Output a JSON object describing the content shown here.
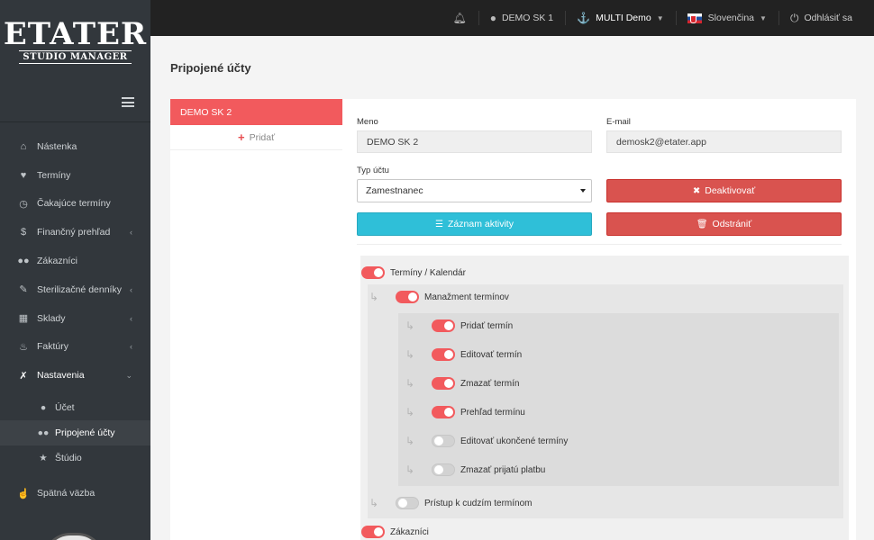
{
  "brand": {
    "name": "ETATER",
    "tagline": "STUDIO MANAGER"
  },
  "topbar": {
    "user": "DEMO SK 1",
    "workspace": "MULTI Demo",
    "language": "Slovenčina",
    "logout": "Odhlásiť sa"
  },
  "sidebar": {
    "items": [
      {
        "label": "Nástenka",
        "icon": "dashboard-icon"
      },
      {
        "label": "Termíny",
        "icon": "heart-icon"
      },
      {
        "label": "Čakajúce termíny",
        "icon": "clock-icon"
      },
      {
        "label": "Finančný prehľad",
        "icon": "dollar-icon"
      },
      {
        "label": "Zákazníci",
        "icon": "users-icon"
      },
      {
        "label": "Sterilizačné denníky",
        "icon": "pencil-icon"
      },
      {
        "label": "Sklady",
        "icon": "warehouse-icon"
      },
      {
        "label": "Faktúry",
        "icon": "fire-icon"
      },
      {
        "label": "Nastavenia",
        "icon": "wrench-icon"
      }
    ],
    "sub": [
      {
        "label": "Účet",
        "icon": "user-cog-icon"
      },
      {
        "label": "Pripojené účty",
        "icon": "users-cog-icon"
      },
      {
        "label": "Štúdio",
        "icon": "star-icon"
      }
    ],
    "feedback": "Spätná väzba"
  },
  "page": {
    "title": "Pripojené účty"
  },
  "accounts": {
    "active": "DEMO SK 2",
    "add": "Pridať"
  },
  "form": {
    "name_label": "Meno",
    "name_value": "DEMO SK 2",
    "email_label": "E-mail",
    "email_value": "demosk2@etater.app",
    "type_label": "Typ účtu",
    "type_value": "Zamestnanec",
    "deactivate": "Deaktivovať",
    "activity": "Záznam aktivity",
    "remove": "Odstrániť"
  },
  "permissions": {
    "calendar": {
      "label": "Termíny / Kalendár",
      "on": true
    },
    "management": {
      "label": "Manažment termínov",
      "on": true
    },
    "add": {
      "label": "Pridať termín",
      "on": true
    },
    "edit": {
      "label": "Editovať termín",
      "on": true
    },
    "delete": {
      "label": "Zmazať termín",
      "on": true
    },
    "overview": {
      "label": "Prehľad termínu",
      "on": true
    },
    "edit_finished": {
      "label": "Editovať ukončené termíny",
      "on": false
    },
    "accept_payment": {
      "label": "Zmazať prijatú platbu",
      "on": false
    },
    "foreign": {
      "label": "Prístup k cudzím termínom",
      "on": false
    },
    "customers": {
      "label": "Zákazníci",
      "on": true
    }
  },
  "colors": {
    "accent": "#f25a5d",
    "danger": "#d9534f",
    "info": "#2fbfd8",
    "sidebar": "#32373c"
  }
}
